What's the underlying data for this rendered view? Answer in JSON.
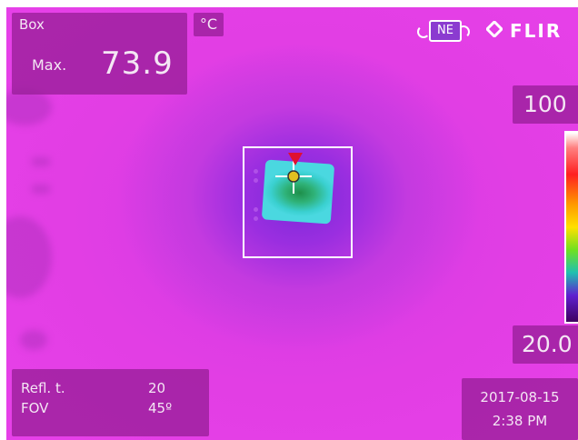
{
  "measurement": {
    "box_label": "Box",
    "max_label": "Max.",
    "max_value": "73.9",
    "unit": "°C"
  },
  "compass": {
    "heading": "NE"
  },
  "brand": {
    "name": "FLIR"
  },
  "scale": {
    "max": "100",
    "min": "20.0"
  },
  "parameters": {
    "refl_t_label": "Refl. t.",
    "refl_t_value": "20",
    "fov_label": "FOV",
    "fov_value": "45º"
  },
  "datetime": {
    "date": "2017-08-15",
    "time": "2:38 PM"
  },
  "colors": {
    "background": "#e23ee4",
    "panel": "#961e96",
    "marker": "#e01030",
    "hotspot": "#2fb278"
  },
  "icons": [
    "compass-icon",
    "flir-logo-icon",
    "crosshair-icon",
    "hotspot-marker-icon"
  ]
}
